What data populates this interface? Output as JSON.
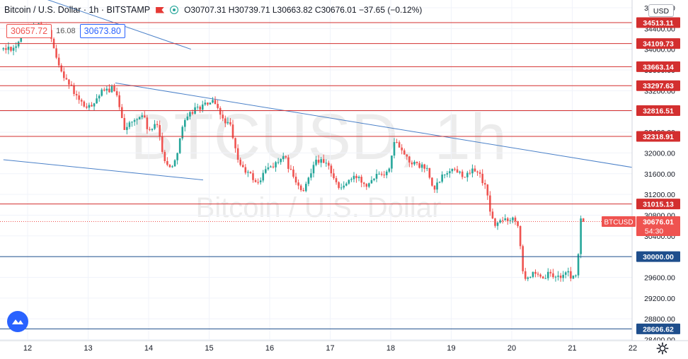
{
  "header": {
    "symbol_title": "Bitcoin / U.S. Dollar · 1h · BITSTAMP",
    "ohlc": "O30707.31 H30739.71 L30663.82 C30676.01 −37.65 (−0.12%)"
  },
  "trade": {
    "sell_price": "30657.72",
    "spread": "16.08",
    "buy_price": "30673.80"
  },
  "currency_button": "USD",
  "watermark": {
    "ticker": "BTCUSD, 1h",
    "name": "Bitcoin / U.S. Dollar"
  },
  "colors": {
    "up": "#26a69a",
    "down": "#ef5350",
    "resistance": "#d32f2f",
    "support": "#1e4e8c",
    "trendline": "#4a80c8",
    "watermark": "#ececec"
  },
  "icons": [
    "flag-icon",
    "status-dot-icon",
    "tradingview-logo-icon",
    "settings-gear-icon"
  ],
  "chart_data": {
    "type": "candlestick",
    "interval": "1h",
    "x_axis_labels": [
      "12",
      "13",
      "14",
      "15",
      "16",
      "17",
      "18",
      "19",
      "20",
      "21",
      "22"
    ],
    "y_ticks": [
      "28400.00",
      "28800.00",
      "29200.00",
      "29600.00",
      "30000.00",
      "30400.00",
      "30800.00",
      "31200.00",
      "31600.00",
      "32000.00",
      "32400.00",
      "32800.00",
      "33200.00",
      "33600.00",
      "34000.00",
      "34400.00",
      "34800.00"
    ],
    "y_range": [
      28380,
      34950
    ],
    "x_range_days": [
      11.6,
      22.0
    ],
    "horizontal_levels": [
      {
        "value": 34513.11,
        "label": "34513.11",
        "kind": "resistance"
      },
      {
        "value": 34109.73,
        "label": "34109.73",
        "kind": "resistance"
      },
      {
        "value": 33663.14,
        "label": "33663.14",
        "kind": "resistance"
      },
      {
        "value": 33297.63,
        "label": "33297.63",
        "kind": "resistance"
      },
      {
        "value": 32816.51,
        "label": "32816.51",
        "kind": "resistance"
      },
      {
        "value": 32318.91,
        "label": "32318.91",
        "kind": "resistance"
      },
      {
        "value": 31015.13,
        "label": "31015.13",
        "kind": "resistance"
      },
      {
        "value": 30000.0,
        "label": "30000.00",
        "kind": "support"
      },
      {
        "value": 28606.62,
        "label": "28606.62",
        "kind": "support"
      }
    ],
    "last_price": {
      "value": 30676.01,
      "label": "30676.01",
      "symbol": "BTCUSD",
      "countdown": "54:30"
    },
    "trendlines": [
      {
        "x": [
          11.6,
          14.7
        ],
        "y": [
          35250,
          34000
        ]
      },
      {
        "x": [
          11.6,
          14.9
        ],
        "y": [
          31870,
          31480
        ]
      },
      {
        "x": [
          13.45,
          22.0
        ],
        "y": [
          33350,
          31720
        ]
      }
    ],
    "anchors": [
      [
        11.6,
        34000
      ],
      [
        11.8,
        34050
      ],
      [
        11.95,
        34400
      ],
      [
        12.2,
        34480
      ],
      [
        12.35,
        34350
      ],
      [
        12.45,
        33900
      ],
      [
        12.6,
        33500
      ],
      [
        12.75,
        33200
      ],
      [
        12.85,
        33000
      ],
      [
        13.0,
        32850
      ],
      [
        13.2,
        33150
      ],
      [
        13.4,
        33250
      ],
      [
        13.5,
        33000
      ],
      [
        13.6,
        32500
      ],
      [
        13.75,
        32600
      ],
      [
        13.9,
        32750
      ],
      [
        14.0,
        32400
      ],
      [
        14.15,
        32550
      ],
      [
        14.25,
        31900
      ],
      [
        14.35,
        31700
      ],
      [
        14.45,
        31900
      ],
      [
        14.55,
        32500
      ],
      [
        14.75,
        32850
      ],
      [
        14.9,
        32900
      ],
      [
        15.05,
        33000
      ],
      [
        15.2,
        32700
      ],
      [
        15.35,
        32500
      ],
      [
        15.45,
        31950
      ],
      [
        15.55,
        31700
      ],
      [
        15.7,
        31550
      ],
      [
        15.8,
        31400
      ],
      [
        15.95,
        31700
      ],
      [
        16.1,
        31800
      ],
      [
        16.25,
        31900
      ],
      [
        16.4,
        31500
      ],
      [
        16.55,
        31200
      ],
      [
        16.75,
        31900
      ],
      [
        16.9,
        31800
      ],
      [
        17.0,
        31700
      ],
      [
        17.15,
        31300
      ],
      [
        17.3,
        31450
      ],
      [
        17.45,
        31550
      ],
      [
        17.6,
        31400
      ],
      [
        17.8,
        31650
      ],
      [
        17.95,
        31600
      ],
      [
        18.05,
        32200
      ],
      [
        18.15,
        32150
      ],
      [
        18.3,
        31850
      ],
      [
        18.45,
        31750
      ],
      [
        18.6,
        31700
      ],
      [
        18.7,
        31250
      ],
      [
        18.85,
        31550
      ],
      [
        19.0,
        31700
      ],
      [
        19.1,
        31650
      ],
      [
        19.25,
        31550
      ],
      [
        19.4,
        31700
      ],
      [
        19.55,
        31400
      ],
      [
        19.7,
        30600
      ],
      [
        19.85,
        30700
      ],
      [
        20.0,
        30750
      ],
      [
        20.1,
        30650
      ],
      [
        20.2,
        29600
      ],
      [
        20.35,
        29650
      ],
      [
        20.5,
        29550
      ],
      [
        20.6,
        29650
      ],
      [
        20.75,
        29600
      ],
      [
        20.9,
        29700
      ],
      [
        21.0,
        29600
      ],
      [
        21.08,
        29650
      ],
      [
        21.13,
        30680
      ],
      [
        21.22,
        30676
      ]
    ]
  }
}
